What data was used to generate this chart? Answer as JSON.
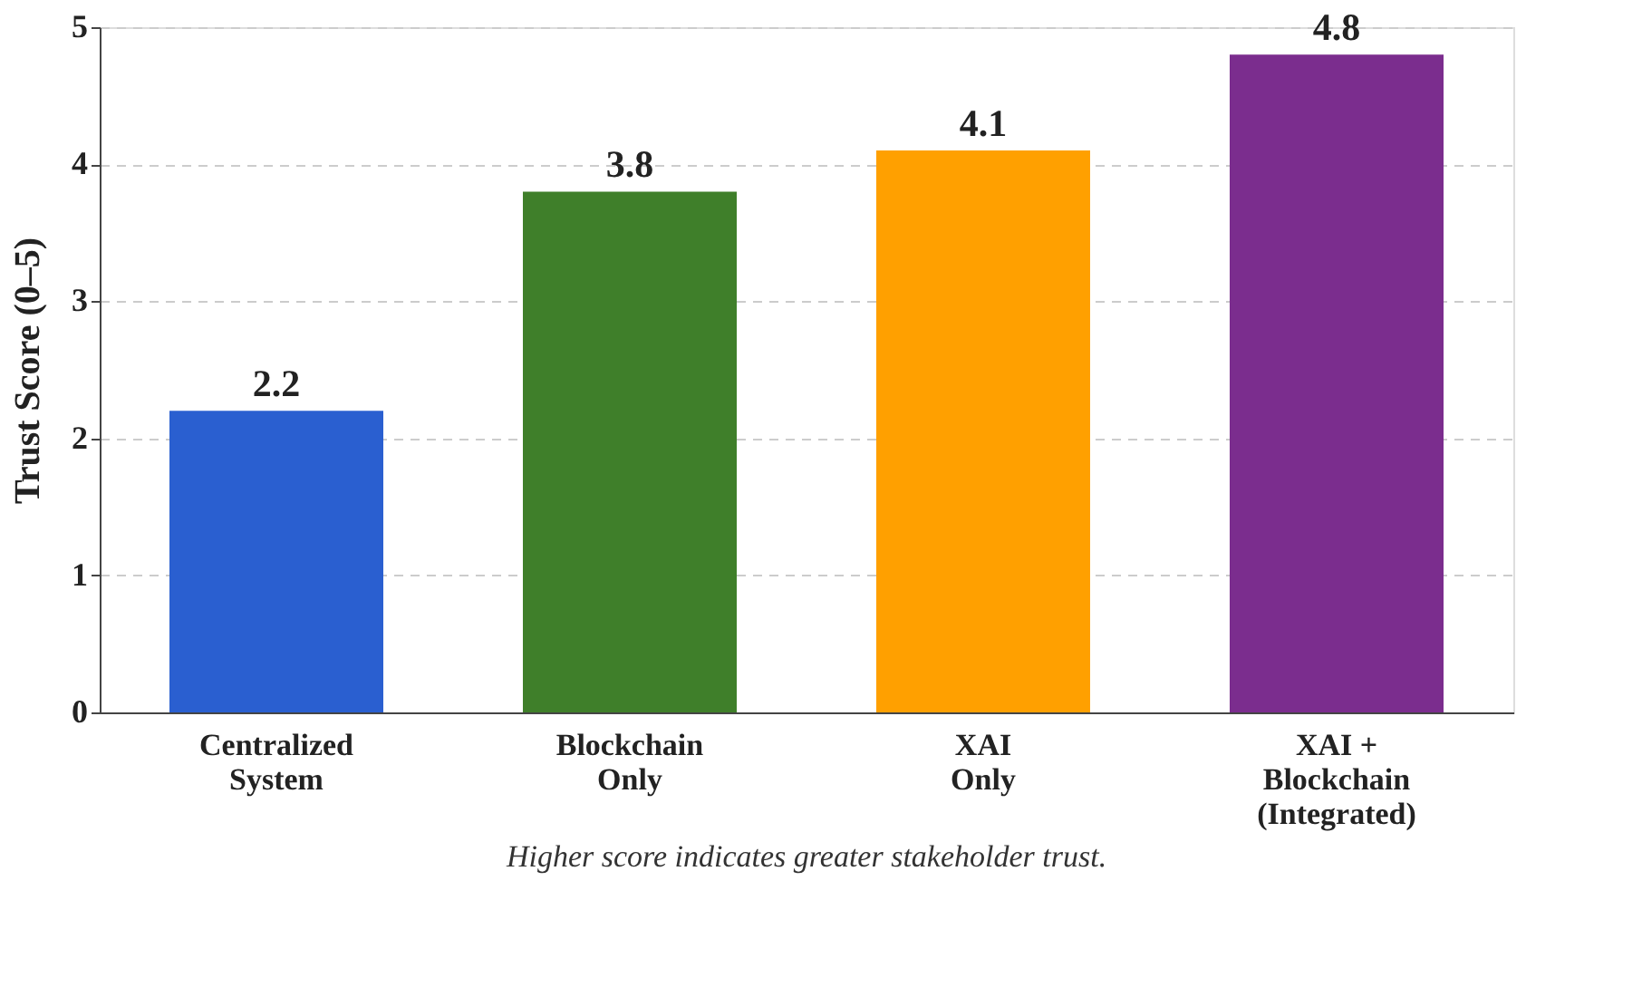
{
  "chart_data": {
    "type": "bar",
    "categories": [
      "Centralized\nSystem",
      "Blockchain\nOnly",
      "XAI\nOnly",
      "XAI +\nBlockchain\n(Integrated)"
    ],
    "values": [
      2.2,
      3.8,
      4.1,
      4.8
    ],
    "colors": [
      "#2a5fd0",
      "#3f7f2a",
      "#ffa000",
      "#7b2d8e"
    ],
    "ylabel": "Trust Score (0–5)",
    "ylim": [
      0,
      5
    ],
    "yticks": [
      0,
      1,
      2,
      3,
      4,
      5
    ],
    "grid": "y",
    "data_labels": true,
    "legend": false,
    "annotations": [
      "Higher score indicates greater stakeholder trust."
    ]
  }
}
